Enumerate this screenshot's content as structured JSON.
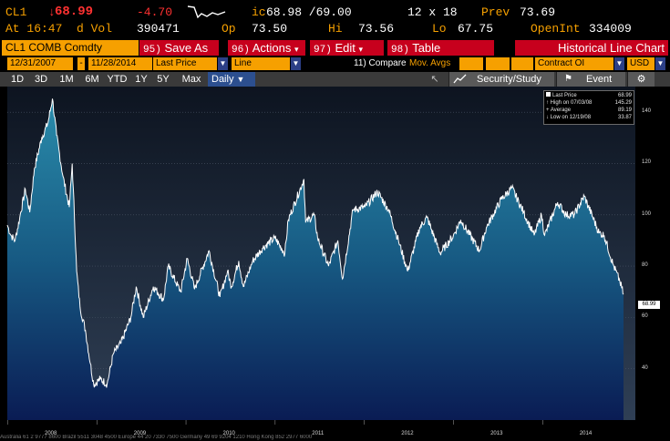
{
  "quote": {
    "ticker": "CL1",
    "last": "68.99",
    "change": "-4.70",
    "time_label": "At 16:47",
    "dvol_label": "d Vol",
    "dvol": "390471",
    "ic_label": "ic",
    "bid_ask": "68.98 /69.00",
    "size": "12 x 18",
    "prev_label": "Prev",
    "prev": "73.69",
    "open_label": "Op",
    "open": "73.50",
    "hi_label": "Hi",
    "hi": "73.56",
    "lo_label": "Lo",
    "lo": "67.75",
    "openint_label": "OpenInt",
    "openint": "334009"
  },
  "toolbar": {
    "security": "CL1 COMB Comdty",
    "buttons": [
      {
        "num": "95)",
        "label": "Save As"
      },
      {
        "num": "96)",
        "label": "Actions"
      },
      {
        "num": "97)",
        "label": "Edit"
      },
      {
        "num": "98)",
        "label": "Table"
      }
    ],
    "title": "Historical Line Chart"
  },
  "settings": {
    "start_date": "12/31/2007",
    "dash": "-",
    "end_date": "11/28/2014",
    "field": "Last Price",
    "type": "Line",
    "compare": "11) Compare",
    "mov_avgs": "Mov. Avgs",
    "secondary": "Contract OI",
    "currency": "USD"
  },
  "rangebar": {
    "ranges": [
      "1D",
      "3D",
      "1M",
      "6M",
      "YTD",
      "1Y",
      "5Y",
      "Max"
    ],
    "period": "Daily",
    "study": "Security/Study",
    "event": "Event"
  },
  "legend": {
    "rows": [
      {
        "label": "Last Price",
        "value": "68.99"
      },
      {
        "label": "High on 07/03/08",
        "value": "145.29"
      },
      {
        "label": "Average",
        "value": "89.19"
      },
      {
        "label": "Low on 12/19/08",
        "value": "33.87"
      }
    ]
  },
  "last_tag": "68.99",
  "status_text": "Australia 61 2 9777 8600 Brazil 5511 3048 4500 Europe 44 20 7330 7500 Germany 49 69 9204 1210 Hong Kong 852 2977 6000",
  "chart_data": {
    "type": "line",
    "ylim": [
      20,
      150
    ],
    "yticks": [
      40,
      60,
      80,
      100,
      120,
      140
    ],
    "x_labels": [
      "2008",
      "2009",
      "2010",
      "2011",
      "2012",
      "2013",
      "2014"
    ],
    "series": [
      {
        "name": "Last Price",
        "points": [
          [
            "2007-12-31",
            96
          ],
          [
            "2008-01-15",
            92
          ],
          [
            "2008-02-01",
            90
          ],
          [
            "2008-02-20",
            99
          ],
          [
            "2008-03-14",
            110
          ],
          [
            "2008-04-01",
            101
          ],
          [
            "2008-04-20",
            118
          ],
          [
            "2008-05-20",
            130
          ],
          [
            "2008-06-15",
            136
          ],
          [
            "2008-07-03",
            145.29
          ],
          [
            "2008-07-20",
            131
          ],
          [
            "2008-08-15",
            115
          ],
          [
            "2008-09-10",
            103
          ],
          [
            "2008-09-22",
            120
          ],
          [
            "2008-10-10",
            78
          ],
          [
            "2008-10-24",
            64
          ],
          [
            "2008-11-15",
            55
          ],
          [
            "2008-12-05",
            42
          ],
          [
            "2008-12-19",
            33.87
          ],
          [
            "2009-01-15",
            36
          ],
          [
            "2009-02-12",
            34
          ],
          [
            "2009-03-10",
            46
          ],
          [
            "2009-04-10",
            50
          ],
          [
            "2009-05-20",
            60
          ],
          [
            "2009-06-11",
            72
          ],
          [
            "2009-07-10",
            60
          ],
          [
            "2009-08-20",
            72
          ],
          [
            "2009-10-01",
            67
          ],
          [
            "2009-10-20",
            80
          ],
          [
            "2009-12-10",
            70
          ],
          [
            "2010-01-06",
            83
          ],
          [
            "2010-02-05",
            71
          ],
          [
            "2010-04-05",
            86
          ],
          [
            "2010-05-20",
            68
          ],
          [
            "2010-06-20",
            78
          ],
          [
            "2010-07-06",
            72
          ],
          [
            "2010-08-05",
            82
          ],
          [
            "2010-08-24",
            72
          ],
          [
            "2010-10-01",
            82
          ],
          [
            "2010-11-10",
            87
          ],
          [
            "2010-12-31",
            91
          ],
          [
            "2011-02-10",
            85
          ],
          [
            "2011-02-24",
            98
          ],
          [
            "2011-04-29",
            113.9
          ],
          [
            "2011-05-06",
            97
          ],
          [
            "2011-06-10",
            100
          ],
          [
            "2011-06-24",
            91
          ],
          [
            "2011-08-08",
            80
          ],
          [
            "2011-09-15",
            90
          ],
          [
            "2011-10-04",
            75
          ],
          [
            "2011-11-16",
            102
          ],
          [
            "2012-01-04",
            103
          ],
          [
            "2012-02-24",
            109
          ],
          [
            "2012-04-10",
            102
          ],
          [
            "2012-05-20",
            90
          ],
          [
            "2012-06-27",
            78
          ],
          [
            "2012-08-15",
            95
          ],
          [
            "2012-09-14",
            99
          ],
          [
            "2012-11-07",
            85
          ],
          [
            "2012-12-31",
            91.8
          ],
          [
            "2013-01-30",
            98
          ],
          [
            "2013-04-17",
            86
          ],
          [
            "2013-05-15",
            95
          ],
          [
            "2013-07-15",
            106
          ],
          [
            "2013-08-28",
            110.5
          ],
          [
            "2013-10-15",
            101
          ],
          [
            "2013-11-27",
            92
          ],
          [
            "2013-12-27",
            100
          ],
          [
            "2014-01-09",
            92
          ],
          [
            "2014-03-03",
            104.9
          ],
          [
            "2014-04-07",
            100
          ],
          [
            "2014-05-10",
            100
          ],
          [
            "2014-06-20",
            107.3
          ],
          [
            "2014-08-20",
            93
          ],
          [
            "2014-09-10",
            92
          ],
          [
            "2014-10-15",
            81
          ],
          [
            "2014-11-13",
            74
          ],
          [
            "2014-11-28",
            68.99
          ]
        ]
      }
    ]
  }
}
